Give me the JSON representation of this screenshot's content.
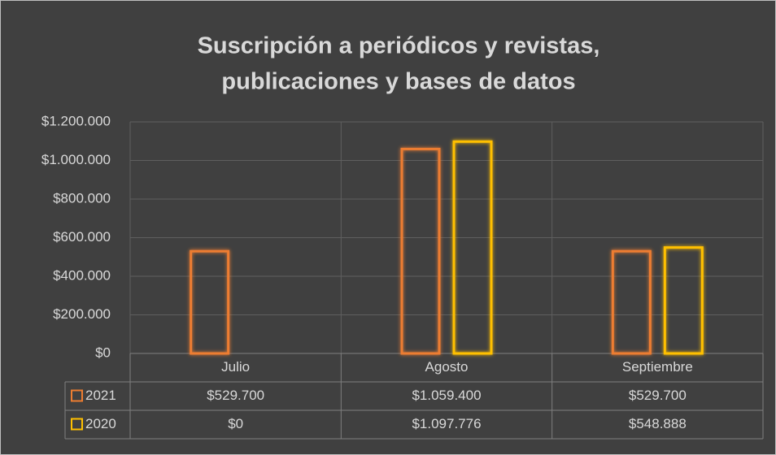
{
  "chart_data": {
    "type": "bar",
    "title": [
      "Suscripción a periódicos y revistas,",
      "publicaciones y bases de datos"
    ],
    "categories": [
      "Julio",
      "Agosto",
      "Septiembre"
    ],
    "series": [
      {
        "name": "2021",
        "color": "#ED7D31",
        "values": [
          529700,
          1059400,
          529700
        ],
        "value_labels": [
          "$529.700",
          "$1.059.400",
          "$529.700"
        ]
      },
      {
        "name": "2020",
        "color": "#FFC000",
        "values": [
          0,
          1097776,
          548888
        ],
        "value_labels": [
          "$0",
          "$1.097.776",
          "$548.888"
        ]
      }
    ],
    "ylim": [
      0,
      1200000
    ],
    "yticks": [
      {
        "value": 0,
        "label": "$0"
      },
      {
        "value": 200000,
        "label": "$200.000"
      },
      {
        "value": 400000,
        "label": "$400.000"
      },
      {
        "value": 600000,
        "label": "$600.000"
      },
      {
        "value": 800000,
        "label": "$800.000"
      },
      {
        "value": 1000000,
        "label": "$1.000.000"
      },
      {
        "value": 1200000,
        "label": "$1.200.000"
      }
    ],
    "grid": true
  }
}
